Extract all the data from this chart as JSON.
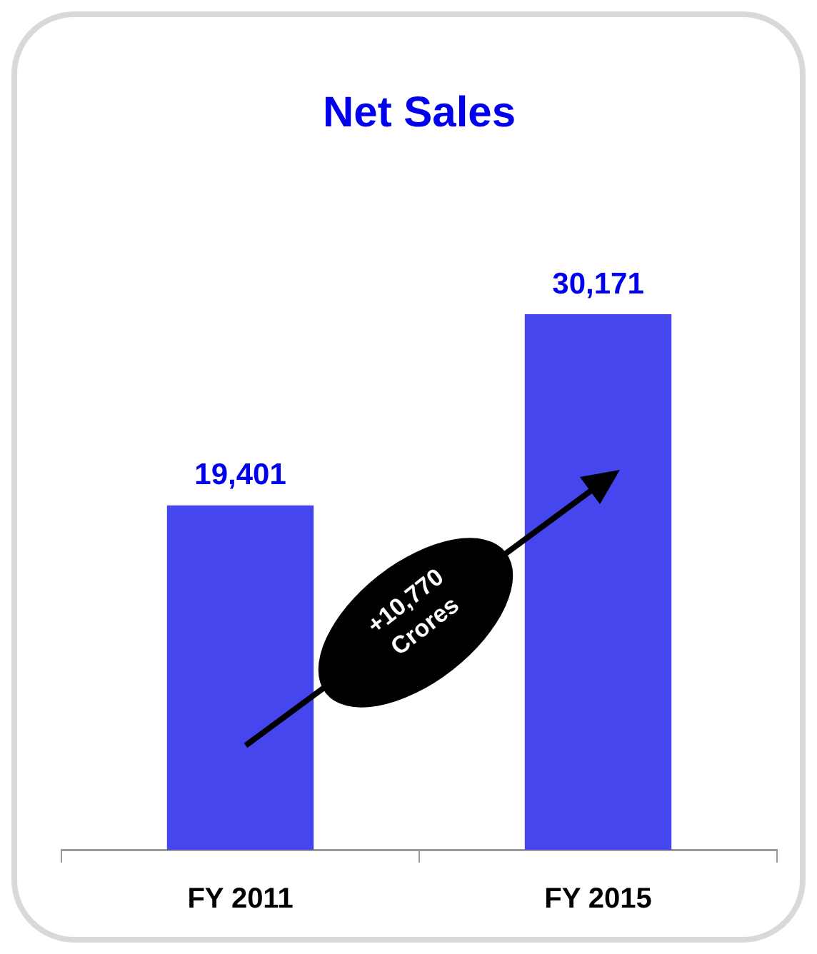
{
  "chart_data": {
    "type": "bar",
    "title": "Net Sales",
    "categories": [
      "FY 2011",
      "FY 2015"
    ],
    "values": [
      19401,
      30171
    ],
    "color": "#4646ee",
    "value_labels": [
      "19,401",
      "30,171"
    ],
    "annotations": [
      "+10,770 Crores"
    ]
  }
}
